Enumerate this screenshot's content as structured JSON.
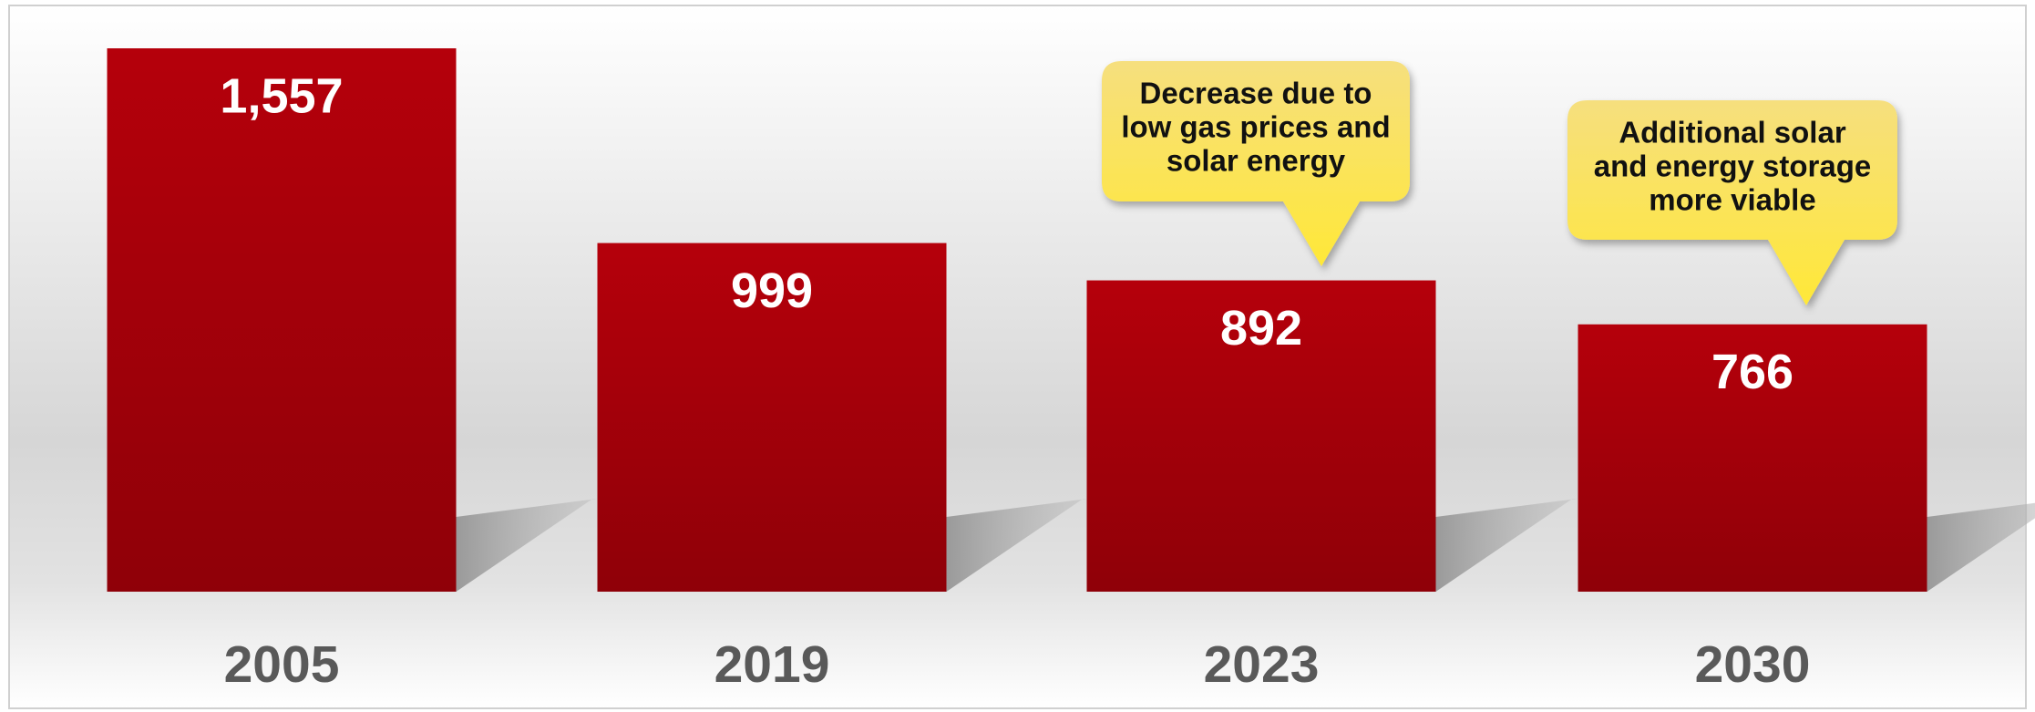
{
  "chart_data": {
    "type": "bar",
    "categories": [
      "2005",
      "2019",
      "2023",
      "2030"
    ],
    "values": [
      1557,
      999,
      892,
      766
    ],
    "value_labels": [
      "1,557",
      "999",
      "892",
      "766"
    ],
    "color": "#a8000a",
    "annotations": [
      {
        "lines": [
          "Decrease due to",
          "low gas prices and",
          "solar energy"
        ]
      },
      {
        "lines": [
          "Additional solar",
          "and energy storage",
          "more viable"
        ]
      }
    ]
  }
}
